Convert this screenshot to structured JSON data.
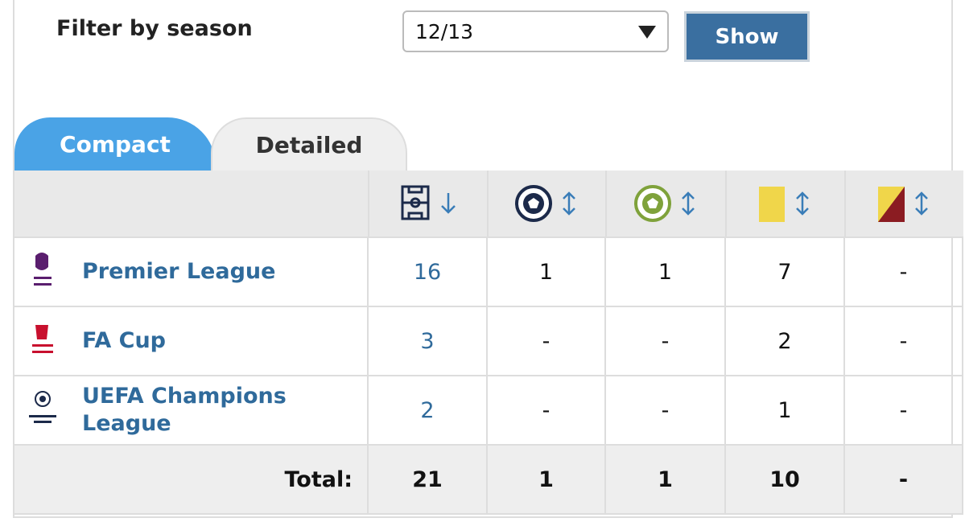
{
  "filter": {
    "label": "Filter by season",
    "season": "12/13",
    "button": "Show"
  },
  "tabs": [
    "Compact",
    "Detailed"
  ],
  "table": {
    "rows": [
      {
        "competition": "Premier League",
        "cells": [
          16,
          1,
          1,
          7,
          "-"
        ]
      },
      {
        "competition": "FA Cup",
        "cells": [
          3,
          "-",
          "-",
          2,
          "-"
        ]
      },
      {
        "competition": "UEFA Champions League",
        "cells": [
          2,
          "-",
          "-",
          1,
          "-"
        ]
      }
    ],
    "total": {
      "label": "Total:",
      "cells": [
        21,
        1,
        1,
        10,
        "-"
      ]
    }
  }
}
